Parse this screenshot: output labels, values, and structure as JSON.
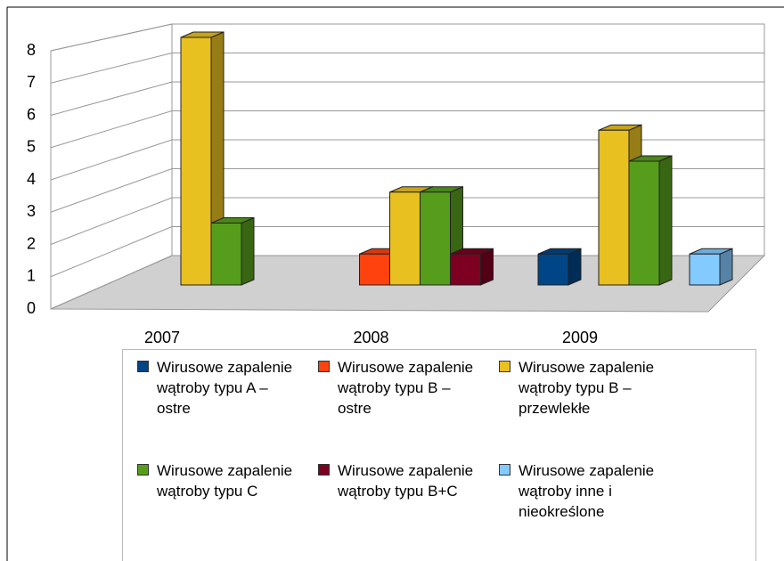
{
  "chart_data": {
    "type": "bar3d",
    "categories": [
      "2007",
      "2008",
      "2009"
    ],
    "ylim": [
      0,
      8
    ],
    "yticks": [
      0,
      1,
      2,
      3,
      4,
      5,
      6,
      7,
      8
    ],
    "grid": true,
    "legend": "bottom",
    "series": [
      {
        "name": "Wirusowe zapalenie wątroby typu A – ostre",
        "color": "#004586",
        "values": [
          null,
          null,
          1
        ]
      },
      {
        "name": "Wirusowe zapalenie wątroby typu B – ostre",
        "color": "#ff420e",
        "values": [
          null,
          1,
          null
        ]
      },
      {
        "name": "Wirusowe zapalenie wątroby typu B – przewlekłe",
        "color": "#e8c020",
        "values": [
          8,
          3,
          5
        ]
      },
      {
        "name": "Wirusowe zapalenie wątroby typu C",
        "color": "#579d1c",
        "values": [
          2,
          3,
          4
        ]
      },
      {
        "name": "Wirusowe zapalenie wątroby typu B+C",
        "color": "#7e0021",
        "values": [
          null,
          1,
          null
        ]
      },
      {
        "name": "Wirusowe zapalenie wątroby inne i nieokreślone",
        "color": "#83caff",
        "values": [
          null,
          null,
          1
        ]
      }
    ]
  }
}
